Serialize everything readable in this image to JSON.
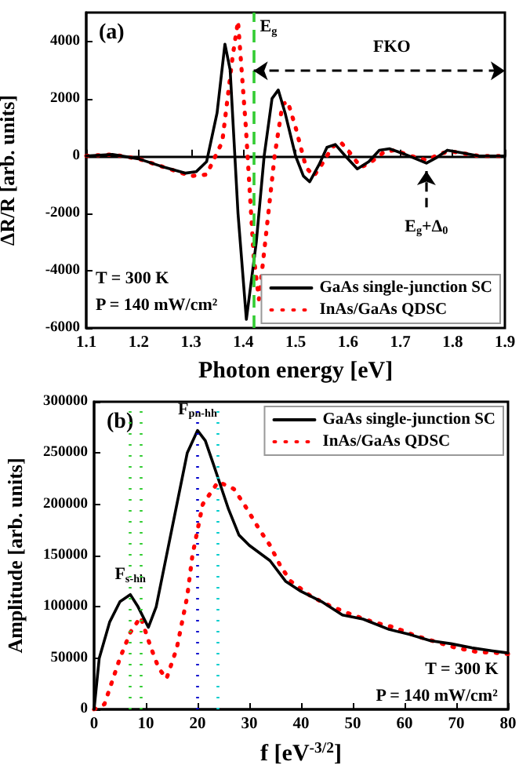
{
  "chart_data": [
    {
      "type": "line",
      "title": "(a)",
      "xlabel": "Photon energy [eV]",
      "ylabel": "ΔR/R [arb. units]",
      "xlim": [
        1.1,
        1.9
      ],
      "xticks": [
        1.1,
        1.2,
        1.3,
        1.4,
        1.5,
        1.6,
        1.7,
        1.8,
        1.9
      ],
      "ylim": [
        -6000,
        5000
      ],
      "yticks": [
        -6000,
        -4000,
        -2000,
        0,
        2000,
        4000
      ],
      "legend": "bottom right",
      "series": [
        {
          "name": "GaAs single-junction SC",
          "color": "#000000",
          "line_style": "solid",
          "x": [
            1.1,
            1.15,
            1.2,
            1.25,
            1.29,
            1.31,
            1.33,
            1.35,
            1.365,
            1.375,
            1.39,
            1.406,
            1.425,
            1.44,
            1.455,
            1.467,
            1.48,
            1.5,
            1.515,
            1.527,
            1.545,
            1.56,
            1.576,
            1.595,
            1.618,
            1.64,
            1.66,
            1.68,
            1.71,
            1.75,
            1.77,
            1.79,
            1.82,
            1.85,
            1.9
          ],
          "values": [
            0,
            50,
            -100,
            -400,
            -600,
            -550,
            -200,
            1500,
            3900,
            3000,
            -2000,
            -5700,
            -3000,
            0,
            2000,
            2300,
            1500,
            0,
            -700,
            -900,
            -300,
            300,
            400,
            0,
            -450,
            -200,
            200,
            250,
            50,
            -250,
            -50,
            200,
            100,
            0,
            0
          ]
        },
        {
          "name": "InAs/GaAs QDSC",
          "color": "#ff0000",
          "line_style": "dotted",
          "x": [
            1.1,
            1.15,
            1.2,
            1.25,
            1.3,
            1.33,
            1.36,
            1.38,
            1.39,
            1.405,
            1.42,
            1.43,
            1.445,
            1.46,
            1.475,
            1.485,
            1.5,
            1.52,
            1.535,
            1.55,
            1.57,
            1.585,
            1.6,
            1.625,
            1.645,
            1.67,
            1.69,
            1.72,
            1.75,
            1.78,
            1.8,
            1.85,
            1.9
          ],
          "values": [
            0,
            50,
            -100,
            -400,
            -700,
            -650,
            500,
            3500,
            4700,
            1000,
            -3500,
            -5000,
            -2500,
            0,
            1800,
            1900,
            1000,
            -400,
            -700,
            -300,
            300,
            500,
            200,
            -400,
            -200,
            150,
            200,
            0,
            -150,
            100,
            150,
            0,
            0
          ]
        }
      ],
      "ref_lines": [
        {
          "axis": "x",
          "value": 1.42,
          "color": "#33cc33",
          "line_style": "dashed"
        }
      ],
      "annotations": [
        {
          "text": "E$_{g}$",
          "x": 1.42,
          "y": 4500
        },
        "FKO",
        {
          "text": "E$_{g}$+Δ$_{0}$",
          "x": 1.75,
          "y": -250
        },
        "T = 300 K",
        "P = 140 mW/cm²"
      ]
    },
    {
      "type": "line",
      "title": "(b)",
      "xlabel": "f [eV$^{-3/2}$]",
      "ylabel": "Amplitude [arb. units]",
      "xlim": [
        0,
        80
      ],
      "xticks": [
        0,
        10,
        20,
        30,
        40,
        50,
        60,
        70,
        80
      ],
      "ylim": [
        0,
        300000
      ],
      "yticks": [
        0,
        50000,
        100000,
        150000,
        200000,
        250000,
        300000
      ],
      "legend": "top right",
      "series": [
        {
          "name": "GaAs single-junction SC",
          "color": "#000000",
          "line_style": "solid",
          "x": [
            0,
            1,
            3,
            5,
            7,
            8.5,
            10.5,
            12,
            14,
            16,
            18,
            20,
            21.5,
            23,
            26,
            28,
            30,
            34,
            37,
            40,
            44,
            48,
            52,
            57,
            61,
            65,
            69,
            73,
            77,
            80
          ],
          "values": [
            0,
            50000,
            85000,
            105000,
            112000,
            100000,
            80000,
            100000,
            150000,
            200000,
            250000,
            272000,
            262000,
            240000,
            195000,
            170000,
            160000,
            145000,
            125000,
            115000,
            105000,
            92000,
            88000,
            78000,
            73000,
            67000,
            64000,
            60000,
            57000,
            55000
          ]
        },
        {
          "name": "InAs/GaAs QDSC",
          "color": "#ff0000",
          "line_style": "dotted",
          "x": [
            0,
            2,
            5,
            7,
            9,
            11,
            12.5,
            14,
            16,
            18,
            19,
            21,
            24,
            27,
            29,
            32,
            34,
            36,
            38,
            42,
            46,
            50,
            54,
            58,
            62,
            66,
            70,
            74,
            78,
            80
          ],
          "values": [
            0,
            5000,
            50000,
            75000,
            90000,
            60000,
            40000,
            30000,
            60000,
            110000,
            150000,
            200000,
            222000,
            215000,
            200000,
            175000,
            160000,
            140000,
            125000,
            110000,
            100000,
            92000,
            85000,
            80000,
            72000,
            66000,
            60000,
            56000,
            55000,
            54000
          ]
        }
      ],
      "ref_lines": [
        {
          "axis": "x",
          "value": 7,
          "color": "#33cc33",
          "line_style": "dotted"
        },
        {
          "axis": "x",
          "value": 9,
          "color": "#33cc33",
          "line_style": "dotted"
        },
        {
          "axis": "x",
          "value": 20,
          "color": "#0000cc",
          "line_style": "dotted"
        },
        {
          "axis": "x",
          "value": 24,
          "color": "#00cccc",
          "line_style": "dotted"
        }
      ],
      "annotations": [
        {
          "text": "F$_{s-hh}$",
          "x": 7,
          "y": 122000
        },
        {
          "text": "F$_{pn-hh}$",
          "x": 20,
          "y": 283000
        },
        "T = 300 K",
        "P = 140 mW/cm²"
      ]
    }
  ]
}
